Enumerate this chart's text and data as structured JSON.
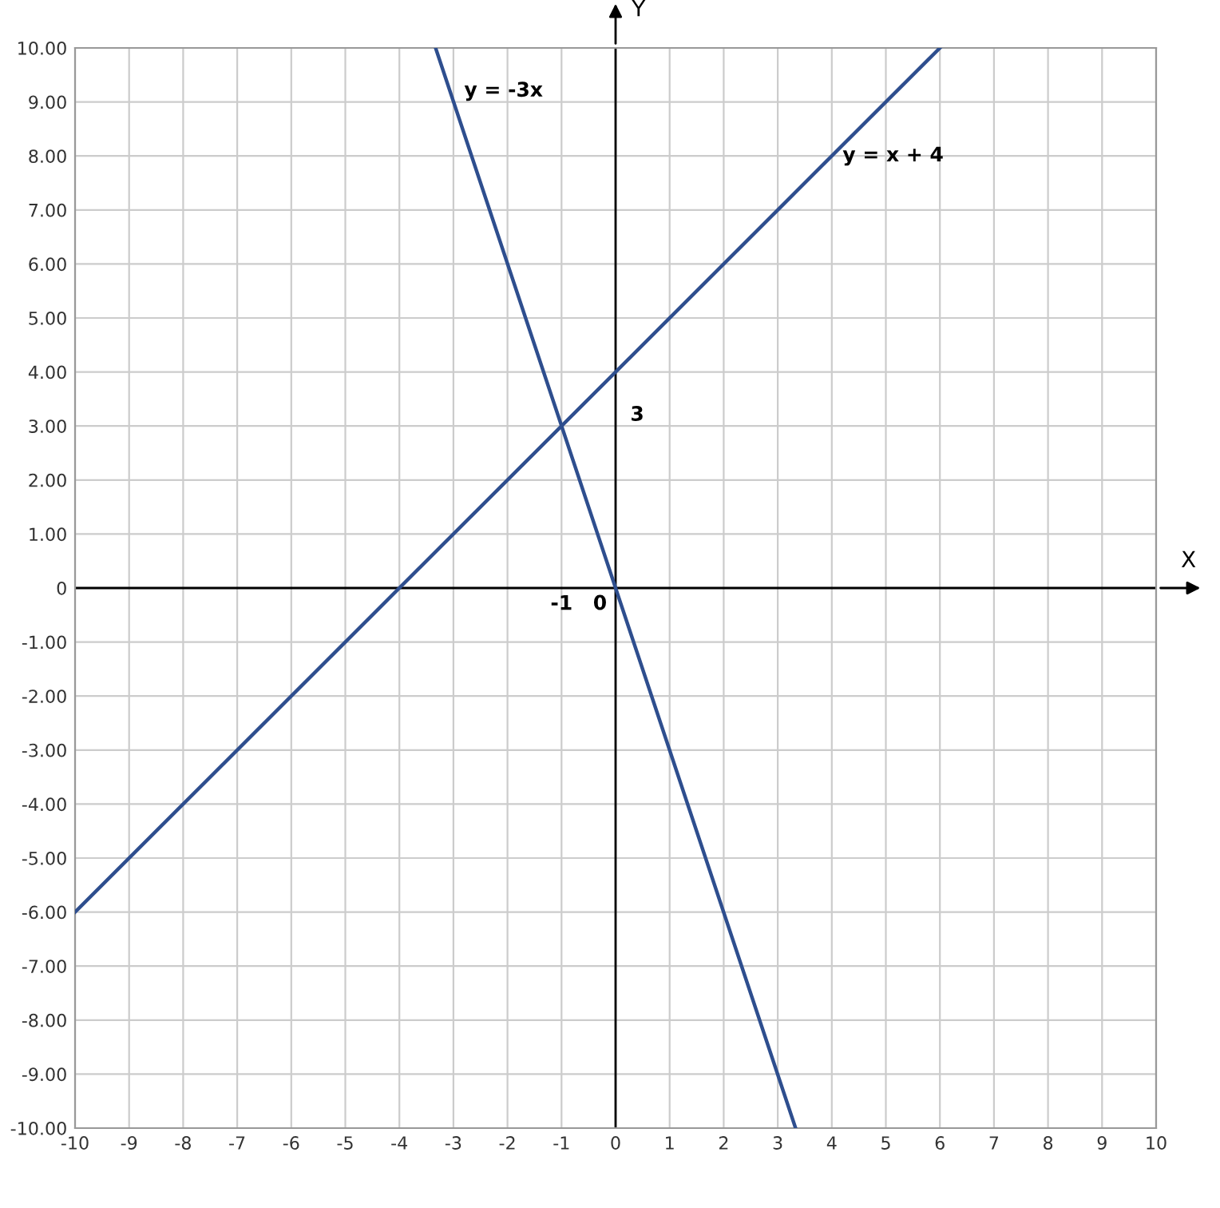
{
  "chart_data": {
    "type": "line",
    "xlabel": "X",
    "ylabel": "Y",
    "series": [
      {
        "x": [
          -3.33,
          3.33
        ],
        "values": [
          10,
          -10
        ],
        "color": "#2e4e8e"
      },
      {
        "x": [
          -10,
          6
        ],
        "values": [
          -6,
          10
        ],
        "color": "#2e4e8e"
      }
    ],
    "xlim": [
      -10,
      10
    ],
    "ylim": [
      -10,
      10
    ],
    "xticks": [
      -10,
      -9,
      -8,
      -7,
      -6,
      -5,
      -4,
      -3,
      -2,
      -1,
      0,
      1,
      2,
      3,
      4,
      5,
      6,
      7,
      8,
      9,
      10
    ],
    "yticks": [
      {
        "value": 10,
        "label": "10.00"
      },
      {
        "value": 9,
        "label": "9.00"
      },
      {
        "value": 8,
        "label": "8.00"
      },
      {
        "value": 7,
        "label": "7.00"
      },
      {
        "value": 6,
        "label": "6.00"
      },
      {
        "value": 5,
        "label": "5.00"
      },
      {
        "value": 4,
        "label": "4.00"
      },
      {
        "value": 3,
        "label": "3.00"
      },
      {
        "value": 2,
        "label": "2.00"
      },
      {
        "value": 1,
        "label": "1.00"
      },
      0,
      {
        "value": -1,
        "label": "-1.00"
      },
      {
        "value": -2,
        "label": "-2.00"
      },
      {
        "value": -3,
        "label": "-3.00"
      },
      {
        "value": -4,
        "label": "-4.00"
      },
      {
        "value": -5,
        "label": "-5.00"
      },
      {
        "value": -6,
        "label": "-6.00"
      },
      {
        "value": -7,
        "label": "-7.00"
      },
      {
        "value": -8,
        "label": "-8.00"
      },
      {
        "value": -9,
        "label": "-9.00"
      },
      {
        "value": -10,
        "label": "-10.00"
      }
    ],
    "grid": true,
    "marker": "none",
    "line_style": "solid",
    "annotations": [
      "y = -3x",
      "y = x + 4",
      "3",
      "-1",
      "0"
    ]
  }
}
